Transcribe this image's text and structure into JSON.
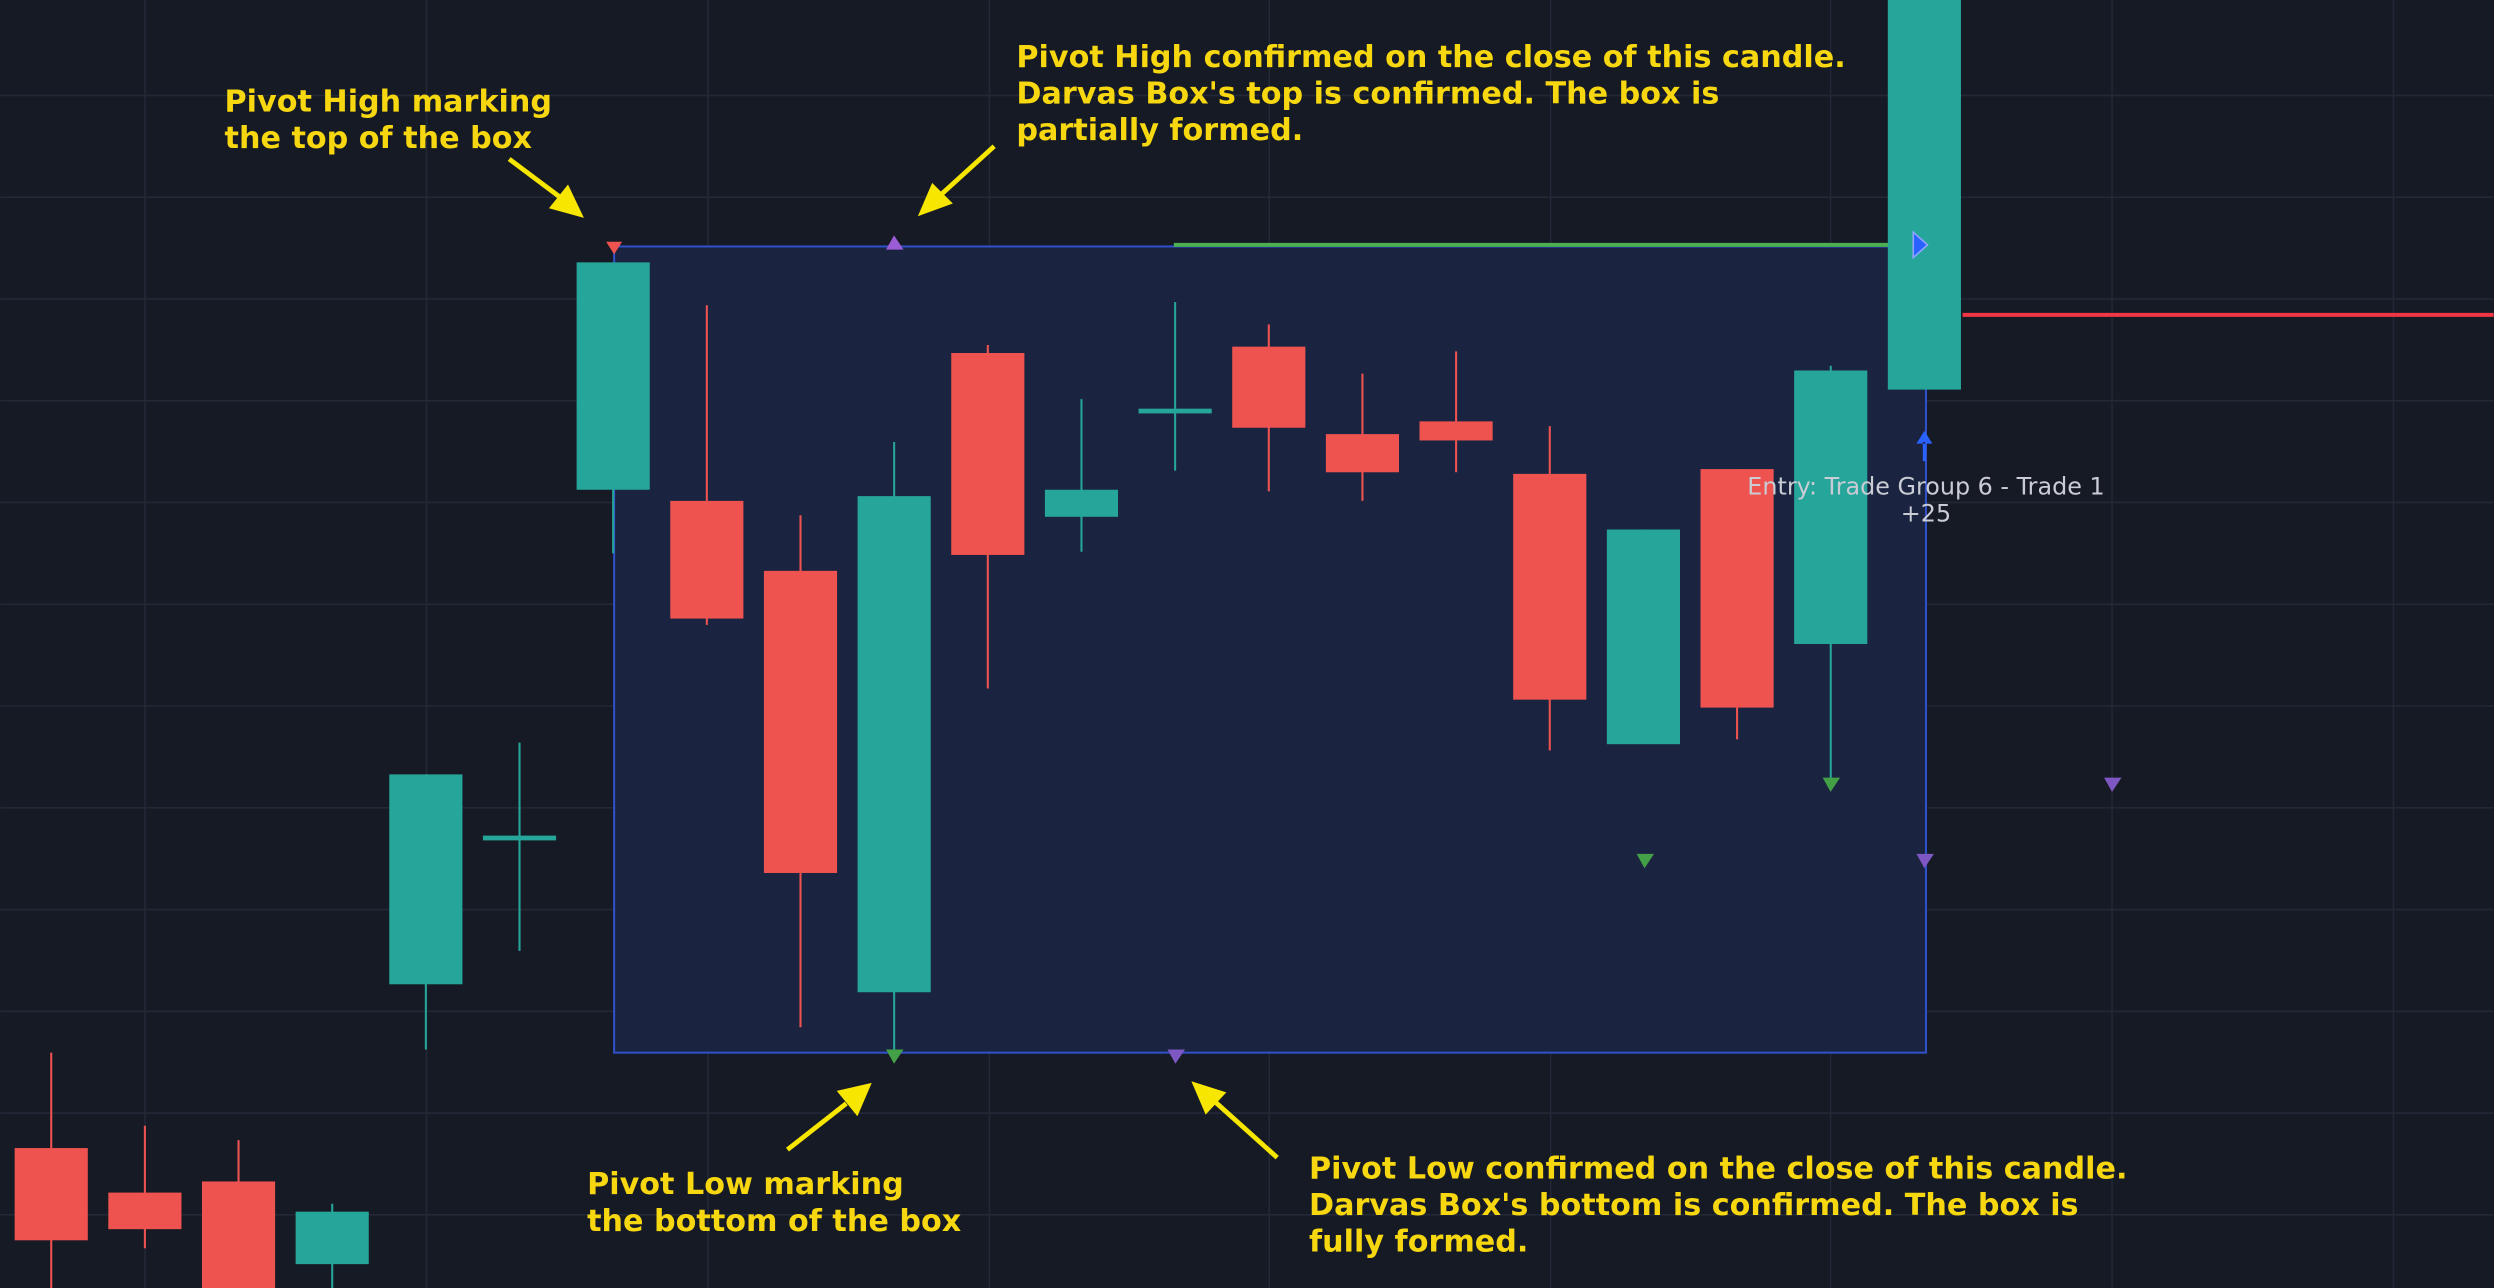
{
  "chart_data": {
    "type": "candlestick",
    "ylim": [
      0,
      810
    ],
    "up_color": "#26a69a",
    "down_color": "#ef5350",
    "open": [
      88,
      60,
      67,
      15,
      191,
      283,
      502,
      495,
      451,
      186,
      588,
      485,
      550,
      592,
      537,
      545,
      512,
      342,
      515,
      405,
      565
    ],
    "high": [
      148,
      102,
      93,
      53,
      323,
      343,
      645,
      618,
      486,
      532,
      593,
      559,
      620,
      606,
      575,
      589,
      542,
      477,
      515,
      580,
      810
    ],
    "low": [
      0,
      25,
      0,
      0,
      150,
      212,
      462,
      417,
      164,
      147,
      377,
      463,
      514,
      501,
      495,
      513,
      338,
      342,
      345,
      320,
      565
    ],
    "close": [
      30,
      37,
      0,
      48,
      323,
      283,
      645,
      421,
      261,
      498,
      461,
      502,
      553,
      541,
      513,
      533,
      370,
      477,
      365,
      577,
      810
    ],
    "annotations": [
      {
        "lines": [
          "Pivot High marking",
          "the top of the box"
        ]
      },
      {
        "lines": [
          "Pivot High confirmed on the close of this candle.",
          "Darvas Box's top is confirmed. The box is",
          "partially formed."
        ]
      },
      {
        "lines": [
          "Pivot Low marking",
          "the bottom of the box"
        ]
      },
      {
        "lines": [
          "Pivot Low confirmed on the close of this candle.",
          "Darvas Box's bottom is confirmed. The box is",
          "fully formed."
        ]
      }
    ],
    "entry_label": [
      "Entry: Trade Group 6 - Trade 1",
      "+25"
    ]
  }
}
